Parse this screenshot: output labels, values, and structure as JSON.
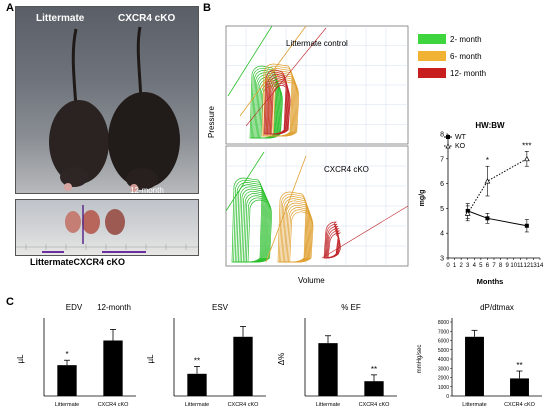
{
  "panel_a": {
    "letter": "A",
    "label_littermate": "Littermate",
    "label_cko": "CXCR4 cKO",
    "age_label": "12-month",
    "bottom_label": "LittermateCXCR4 cKO"
  },
  "panel_b": {
    "letter": "B",
    "pv_top_title": "Littermate control",
    "pv_bottom_title": "CXCR4 cKO",
    "pv_ylabel": "Pressure",
    "pv_xlabel": "Volume",
    "legend": [
      {
        "label": "2- month",
        "color": "#3ed43e"
      },
      {
        "label": "6- month",
        "color": "#f2b233"
      },
      {
        "label": "12- month",
        "color": "#c81e1e"
      }
    ],
    "colors": {
      "green": "#2bbf2b",
      "orange": "#e0a030",
      "red": "#c0262a",
      "grid": "#b7c8e6"
    }
  },
  "chart_data": [
    {
      "type": "line",
      "title": "HW:BW",
      "xlabel": "Months",
      "ylabel": "mg/g",
      "xlim": [
        0,
        14
      ],
      "ylim": [
        3,
        8
      ],
      "xticks": [
        "0",
        "1",
        "2",
        "3",
        "4",
        "5",
        "6",
        "7",
        "8",
        "9",
        "10",
        "11",
        "12",
        "13",
        "14"
      ],
      "yticks": [
        "3",
        "4",
        "5",
        "6",
        "7",
        "8"
      ],
      "series": [
        {
          "name": "WT",
          "x": [
            3,
            6,
            12
          ],
          "y": [
            4.9,
            4.6,
            4.3
          ],
          "err": [
            0.3,
            0.2,
            0.25
          ],
          "style": "solid",
          "marker": "square"
        },
        {
          "name": "KO",
          "x": [
            3,
            6,
            12
          ],
          "y": [
            4.8,
            6.1,
            7.0
          ],
          "err": [
            0.3,
            0.6,
            0.3
          ],
          "style": "dotted",
          "marker": "triangle"
        }
      ],
      "annotations": [
        {
          "x": 6,
          "text": "*"
        },
        {
          "x": 12,
          "text": "***"
        }
      ]
    },
    {
      "type": "bar",
      "panel_letter": "C",
      "title": "EDV",
      "subtitle": "12-month",
      "ylabel": "µL",
      "categories": [
        "Littermate",
        "CXCR4 cKO"
      ],
      "values": [
        25,
        45
      ],
      "errors": [
        4,
        9
      ],
      "ylim": [
        0,
        60
      ],
      "significance": [
        "*",
        ""
      ]
    },
    {
      "type": "bar",
      "title": "ESV",
      "ylabel": "µL",
      "categories": [
        "Littermate",
        "CXCR4 cKO"
      ],
      "values": [
        15,
        40
      ],
      "errors": [
        5,
        7
      ],
      "ylim": [
        0,
        50
      ],
      "significance": [
        "**",
        ""
      ]
    },
    {
      "type": "bar",
      "title": "% EF",
      "ylabel": "Δ%",
      "categories": [
        "Littermate",
        "CXCR4 cKO"
      ],
      "values": [
        50,
        14
      ],
      "errors": [
        7,
        6
      ],
      "ylim": [
        0,
        70
      ],
      "significance": [
        "",
        "**"
      ]
    },
    {
      "type": "bar",
      "title": "dP/dtmax",
      "ylabel": "mmHg/sec",
      "categories": [
        "Littermate",
        "CXCR4 cKO"
      ],
      "values": [
        6400,
        1900
      ],
      "errors": [
        700,
        800
      ],
      "ylim": [
        0,
        8000
      ],
      "yticks": [
        "0",
        "1000",
        "2000",
        "3000",
        "4000",
        "5000",
        "6000",
        "7000",
        "8000"
      ],
      "significance": [
        "",
        "**"
      ]
    }
  ]
}
